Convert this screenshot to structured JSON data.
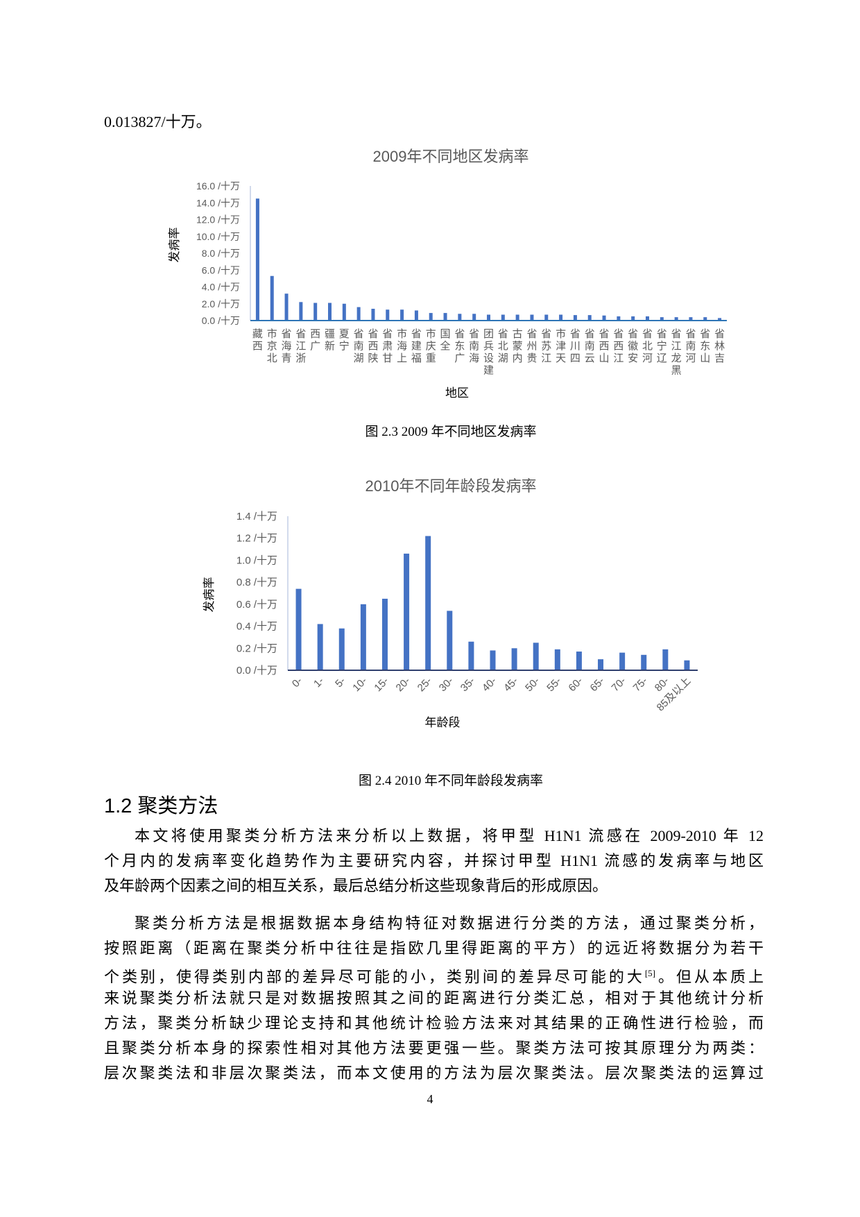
{
  "top_line": "0.013827/十万。",
  "captions": {
    "fig1": "图  2.3 2009 年不同地区发病率",
    "fig2": "图  2.4 2010 年不同年龄段发病率"
  },
  "section": {
    "heading": "1.2  聚类方法",
    "para1": [
      "本文将使用聚类分析方法来分析以上数据，将甲型 H1N1 流感在 2009-2010 年 12",
      "个月内的发病率变化趋势作为主要研究内容，并探讨甲型 H1N1 流感的发病率与地区",
      "及年龄两个因素之间的相互关系，最后总结分析这些现象背后的形成原因。"
    ],
    "para2": [
      "聚类分析方法是根据数据本身结构特征对数据进行分类的方法，通过聚类分析，",
      "按照距离（距离在聚类分析中往往是指欧几里得距离的平方）的远近将数据分为若干",
      "个类别，使得类别内部的差异尽可能的小，类别间的差异尽可能的大",
      "[5]",
      "。但从本质上",
      "来说聚类分析法就只是对数据按照其之间的距离进行分类汇总，相对于其他统计分析",
      "方法，聚类分析缺少理论支持和其他统计检验方法来对其结果的正确性进行检验，而",
      "且聚类分析本身的探索性相对其他方法要更强一些。聚类方法可按其原理分为两类：",
      "层次聚类法和非层次聚类法，而本文使用的方法为层次聚类法。层次聚类法的运算过"
    ]
  },
  "page_number": "4",
  "chart_data": [
    {
      "type": "bar",
      "title": "2009年不同地区发病率",
      "xlabel": "地区",
      "ylabel": "发病率",
      "ylim": [
        0,
        16
      ],
      "yticks": [
        "0.0 /十万",
        "2.0 /十万",
        "4.0 /十万",
        "6.0 /十万",
        "8.0 /十万",
        "10.0 /十万",
        "12.0 /十万",
        "14.0 /十万",
        "16.0 /十万"
      ],
      "grid": false,
      "bar_color": "#4472C4",
      "categories": [
        "西藏",
        "北京市",
        "青海省",
        "浙江省",
        "广西",
        "新疆",
        "宁夏",
        "湖南省",
        "陕西省",
        "甘肃省",
        "上海市",
        "福建省",
        "重庆市",
        "全国",
        "广东省",
        "海南省",
        "建设兵团",
        "湖北省",
        "内蒙古",
        "贵州省",
        "江苏省",
        "天津市",
        "四川省",
        "云南省",
        "山西省",
        "江西省",
        "安徽省",
        "河北省",
        "辽宁省",
        "黑龙江省",
        "河南省",
        "山东省",
        "吉林省"
      ],
      "values": [
        14.5,
        5.3,
        3.2,
        2.2,
        2.1,
        2.1,
        2.0,
        1.6,
        1.4,
        1.3,
        1.3,
        1.2,
        0.9,
        0.9,
        0.8,
        0.8,
        0.7,
        0.7,
        0.7,
        0.7,
        0.7,
        0.7,
        0.65,
        0.65,
        0.6,
        0.5,
        0.5,
        0.5,
        0.4,
        0.4,
        0.4,
        0.4,
        0.3
      ]
    },
    {
      "type": "bar",
      "title": "2010年不同年龄段发病率",
      "xlabel": "年龄段",
      "ylabel": "发病率",
      "ylim": [
        0,
        1.4
      ],
      "yticks": [
        "0.0 /十万",
        "0.2 /十万",
        "0.4 /十万",
        "0.6 /十万",
        "0.8 /十万",
        "1.0 /十万",
        "1.2 /十万",
        "1.4 /十万"
      ],
      "grid": false,
      "bar_color": "#4472C4",
      "categories": [
        "0-",
        "1-",
        "5-",
        "10-",
        "15-",
        "20-",
        "25-",
        "30-",
        "35-",
        "40-",
        "45-",
        "50-",
        "55-",
        "60-",
        "65-",
        "70-",
        "75-",
        "80-",
        "85及以上"
      ],
      "values": [
        0.74,
        0.42,
        0.38,
        0.6,
        0.65,
        1.06,
        1.22,
        0.54,
        0.26,
        0.18,
        0.2,
        0.25,
        0.19,
        0.17,
        0.1,
        0.16,
        0.14,
        0.19,
        0.09
      ]
    }
  ]
}
